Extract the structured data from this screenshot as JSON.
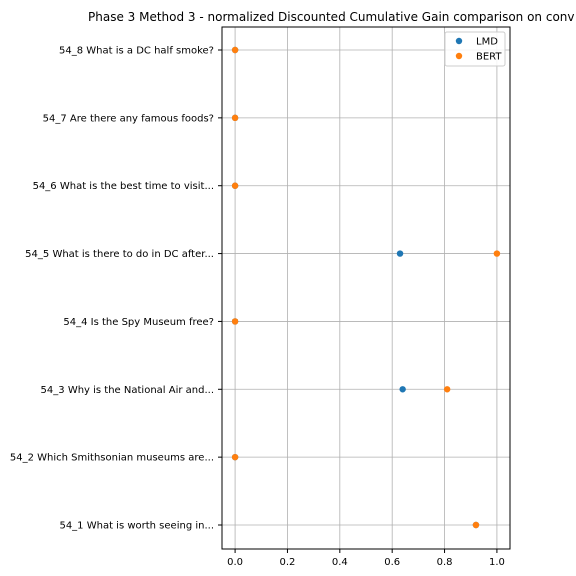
{
  "chart_data": {
    "type": "scatter",
    "title": "Phase 3 Method 3 - normalized Discounted Cumulative Gain comparison on conv",
    "xlabel": "",
    "ylabel": "",
    "xlim": [
      -0.05,
      1.05
    ],
    "xticks": [
      0.0,
      0.2,
      0.4,
      0.6,
      0.8,
      1.0
    ],
    "xtick_labels": [
      "0.0",
      "0.2",
      "0.4",
      "0.6",
      "0.8",
      "1.0"
    ],
    "grid": true,
    "legend_position": "top-right",
    "categories": [
      "54_1 What is worth seeing in...",
      "54_2 Which Smithsonian museums are...",
      "54_3 Why is the National Air and...",
      "54_4 Is the Spy Museum free?",
      "54_5 What is there to do in DC after...",
      "54_6 What is the best time to visit...",
      "54_7 Are there any famous foods?",
      "54_8 What is a DC half smoke?"
    ],
    "series": [
      {
        "name": "LMD",
        "color": "#1f77b4",
        "values": [
          0.92,
          0.0,
          0.64,
          0.0,
          0.63,
          0.0,
          0.0,
          0.0
        ]
      },
      {
        "name": "BERT",
        "color": "#ff7f0e",
        "values": [
          0.92,
          0.0,
          0.81,
          0.0,
          1.0,
          0.0,
          0.0,
          0.0
        ]
      }
    ]
  }
}
